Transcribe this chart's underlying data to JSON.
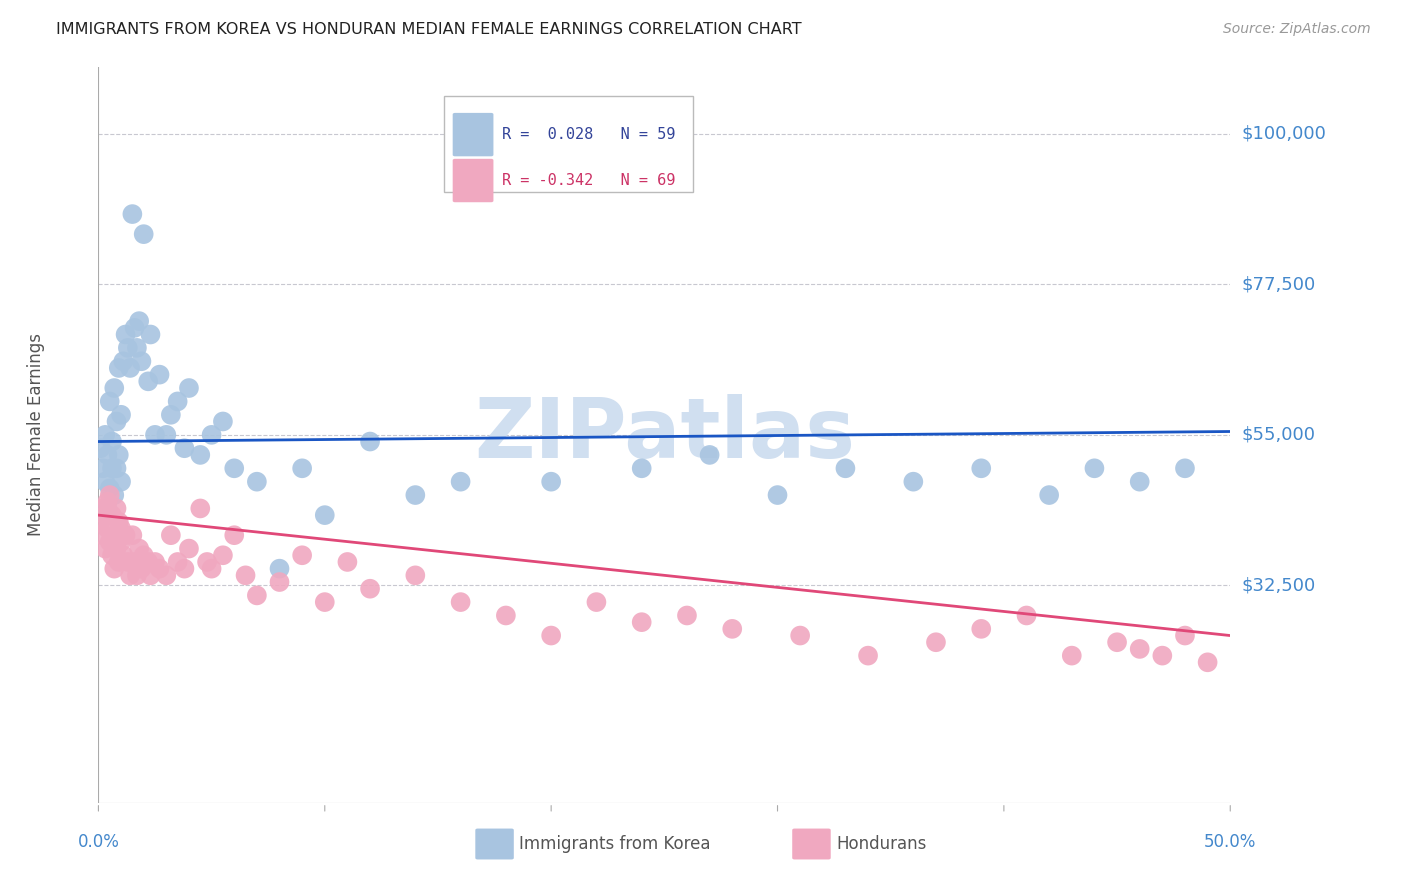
{
  "title": "IMMIGRANTS FROM KOREA VS HONDURAN MEDIAN FEMALE EARNINGS CORRELATION CHART",
  "source": "Source: ZipAtlas.com",
  "ylabel": "Median Female Earnings",
  "xlim": [
    0.0,
    0.5
  ],
  "ylim": [
    0,
    110000
  ],
  "yticks": [
    0,
    32500,
    55000,
    77500,
    100000
  ],
  "ytick_labels": [
    "",
    "$32,500",
    "$55,000",
    "$77,500",
    "$100,000"
  ],
  "background_color": "#ffffff",
  "grid_color": "#c8c8d0",
  "blue_scatter_color": "#a8c4e0",
  "pink_scatter_color": "#f0a8c0",
  "blue_line_color": "#1a56c4",
  "pink_line_color": "#e04878",
  "right_label_color": "#4488cc",
  "title_color": "#222222",
  "watermark_color": "#d0dff0",
  "legend_R1": "R =  0.028",
  "legend_N1": "N = 59",
  "legend_R2": "R = -0.342",
  "legend_N2": "N = 69",
  "label_korea": "Immigrants from Korea",
  "label_hondurans": "Hondurans",
  "korea_x": [
    0.001,
    0.002,
    0.003,
    0.003,
    0.004,
    0.004,
    0.005,
    0.005,
    0.006,
    0.006,
    0.007,
    0.007,
    0.008,
    0.008,
    0.009,
    0.009,
    0.01,
    0.01,
    0.011,
    0.012,
    0.013,
    0.014,
    0.015,
    0.016,
    0.017,
    0.018,
    0.019,
    0.02,
    0.022,
    0.023,
    0.025,
    0.027,
    0.03,
    0.032,
    0.035,
    0.038,
    0.04,
    0.045,
    0.05,
    0.055,
    0.06,
    0.07,
    0.08,
    0.09,
    0.1,
    0.12,
    0.14,
    0.16,
    0.2,
    0.24,
    0.27,
    0.3,
    0.33,
    0.36,
    0.39,
    0.42,
    0.44,
    0.46,
    0.48
  ],
  "korea_y": [
    53000,
    50000,
    55000,
    48000,
    52000,
    44000,
    60000,
    47000,
    54000,
    50000,
    62000,
    46000,
    57000,
    50000,
    65000,
    52000,
    58000,
    48000,
    66000,
    70000,
    68000,
    65000,
    88000,
    71000,
    68000,
    72000,
    66000,
    85000,
    63000,
    70000,
    55000,
    64000,
    55000,
    58000,
    60000,
    53000,
    62000,
    52000,
    55000,
    57000,
    50000,
    48000,
    35000,
    50000,
    43000,
    54000,
    46000,
    48000,
    48000,
    50000,
    52000,
    46000,
    50000,
    48000,
    50000,
    46000,
    50000,
    48000,
    50000
  ],
  "honduran_x": [
    0.001,
    0.002,
    0.002,
    0.003,
    0.003,
    0.004,
    0.004,
    0.005,
    0.005,
    0.006,
    0.006,
    0.007,
    0.007,
    0.008,
    0.008,
    0.009,
    0.009,
    0.01,
    0.01,
    0.011,
    0.012,
    0.013,
    0.014,
    0.015,
    0.016,
    0.017,
    0.018,
    0.019,
    0.02,
    0.022,
    0.023,
    0.025,
    0.027,
    0.03,
    0.032,
    0.035,
    0.038,
    0.04,
    0.045,
    0.048,
    0.05,
    0.055,
    0.06,
    0.065,
    0.07,
    0.08,
    0.09,
    0.1,
    0.11,
    0.12,
    0.14,
    0.16,
    0.18,
    0.2,
    0.22,
    0.24,
    0.26,
    0.28,
    0.31,
    0.34,
    0.37,
    0.39,
    0.41,
    0.43,
    0.45,
    0.46,
    0.47,
    0.48,
    0.49
  ],
  "honduran_y": [
    42000,
    44000,
    40000,
    43000,
    38000,
    41000,
    45000,
    39000,
    46000,
    37000,
    43000,
    40000,
    35000,
    44000,
    38000,
    36000,
    42000,
    39000,
    41000,
    37000,
    40000,
    36000,
    34000,
    40000,
    36000,
    34000,
    38000,
    35000,
    37000,
    36000,
    34000,
    36000,
    35000,
    34000,
    40000,
    36000,
    35000,
    38000,
    44000,
    36000,
    35000,
    37000,
    40000,
    34000,
    31000,
    33000,
    37000,
    30000,
    36000,
    32000,
    34000,
    30000,
    28000,
    25000,
    30000,
    27000,
    28000,
    26000,
    25000,
    22000,
    24000,
    26000,
    28000,
    22000,
    24000,
    23000,
    22000,
    25000,
    21000
  ]
}
